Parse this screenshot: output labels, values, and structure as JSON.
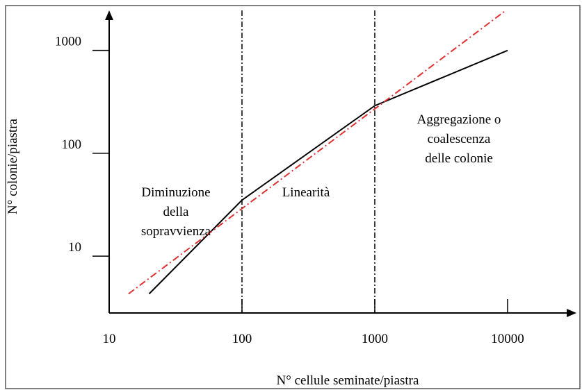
{
  "chart_data": {
    "type": "line",
    "x_label": "N° cellule seminate/piastra",
    "y_label": "N° colonie/piastra",
    "xscale": "log",
    "yscale": "log",
    "xlim": [
      10,
      33000
    ],
    "ylim": [
      2.8,
      2450
    ],
    "xticks": [
      10,
      100,
      1000,
      10000
    ],
    "yticks": [
      10,
      100,
      1000
    ],
    "vlines": [
      100,
      1000
    ],
    "series": [
      {
        "color": "#000000",
        "style": "solid",
        "x": [
          20,
          100,
          1000,
          10000
        ],
        "values": [
          4.3,
          35,
          290,
          1000
        ]
      },
      {
        "color": "#e03030",
        "style": "dashdot",
        "x": [
          14,
          9500
        ],
        "values": [
          4.3,
          2400
        ]
      }
    ],
    "annotations": [
      {
        "lines": [
          "Diminuzione",
          "della",
          "sopravvienza"
        ]
      },
      {
        "lines": [
          "Linearità"
        ]
      },
      {
        "lines": [
          "Aggregazione o",
          "coalescenza",
          "delle colonie"
        ]
      }
    ]
  }
}
